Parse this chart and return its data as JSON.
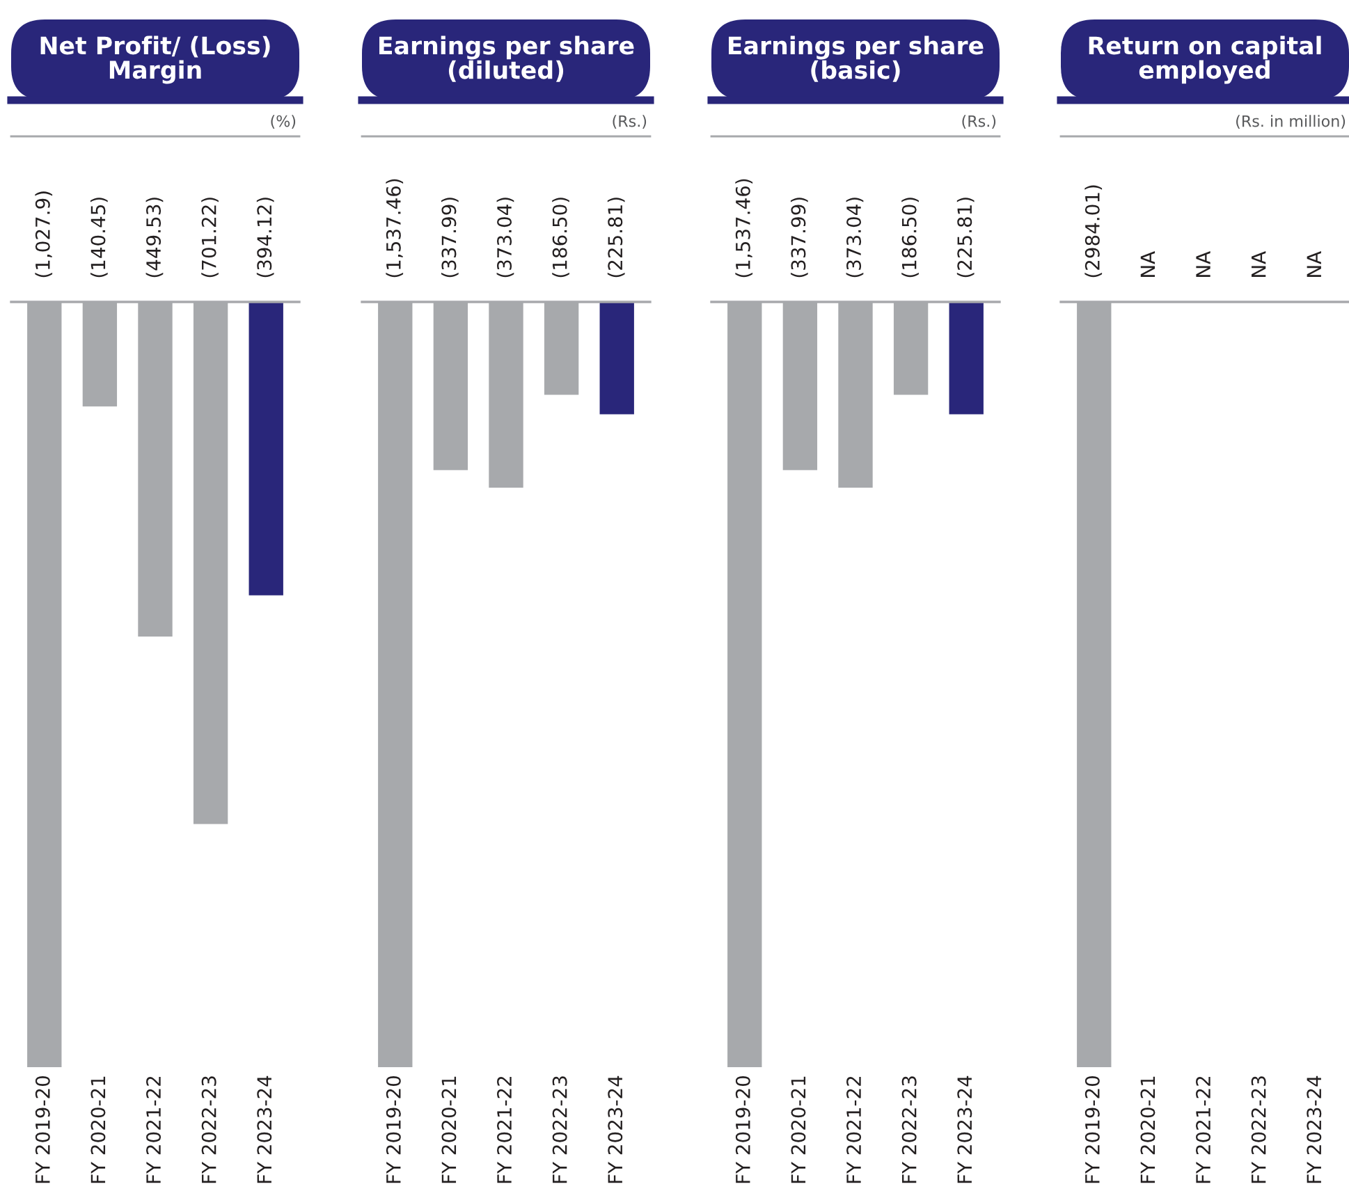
{
  "chart_data": [
    {
      "type": "bar",
      "title": "Net Profit/ (Loss)\nMargin",
      "subtitle": "(%)",
      "categories": [
        "FY 2019-20",
        "FY 2020-21",
        "FY 2021-22",
        "FY 2022-23",
        "FY 2023-24"
      ],
      "values": [
        -1027.9,
        -140.45,
        -449.53,
        -701.22,
        -394.12
      ],
      "colors": [
        "#a7a9ac",
        "#a7a9ac",
        "#a7a9ac",
        "#a7a9ac",
        "#29267a"
      ],
      "value_labels": [
        "(1,027.9)",
        "(140.45)",
        "(449.53)",
        "(701.22)",
        "(394.12)"
      ],
      "ylim": [
        -1027.9,
        0
      ],
      "tick_labels": "x",
      "grid": false,
      "legend": false
    },
    {
      "type": "bar",
      "title": "Earnings per share\n(diluted)",
      "subtitle": "(Rs.)",
      "categories": [
        "FY 2019-20",
        "FY 2020-21",
        "FY 2021-22",
        "FY 2022-23",
        "FY 2023-24"
      ],
      "values": [
        -1537.46,
        -337.99,
        -373.04,
        -186.5,
        -225.81
      ],
      "colors": [
        "#a7a9ac",
        "#a7a9ac",
        "#a7a9ac",
        "#a7a9ac",
        "#29267a"
      ],
      "value_labels": [
        "(1,537.46)",
        "(337.99)",
        "(373.04)",
        "(186.50)",
        "(225.81)"
      ],
      "ylim": [
        -1537.46,
        0
      ],
      "tick_labels": "x",
      "grid": false,
      "legend": false
    },
    {
      "type": "bar",
      "title": "Earnings per share\n(basic)",
      "subtitle": "(Rs.)",
      "categories": [
        "FY 2019-20",
        "FY 2020-21",
        "FY 2021-22",
        "FY 2022-23",
        "FY 2023-24"
      ],
      "values": [
        -1537.46,
        -337.99,
        -373.04,
        -186.5,
        -225.81
      ],
      "colors": [
        "#a7a9ac",
        "#a7a9ac",
        "#a7a9ac",
        "#a7a9ac",
        "#29267a"
      ],
      "value_labels": [
        "(1,537.46)",
        "(337.99)",
        "(373.04)",
        "(186.50)",
        "(225.81)"
      ],
      "ylim": [
        -1537.46,
        0
      ],
      "tick_labels": "x",
      "grid": false,
      "legend": false
    },
    {
      "type": "bar",
      "title": "Return on capital\nemployed",
      "subtitle": "(Rs. in million)",
      "categories": [
        "FY 2019-20",
        "FY 2020-21",
        "FY 2021-22",
        "FY 2022-23",
        "FY 2023-24"
      ],
      "values": [
        -2984.01,
        null,
        null,
        null,
        null
      ],
      "colors": [
        "#a7a9ac",
        "#a7a9ac",
        "#a7a9ac",
        "#a7a9ac",
        "#a7a9ac"
      ],
      "value_labels": [
        "(2984.01)",
        "NA",
        "NA",
        "NA",
        "NA"
      ],
      "ylim": [
        -2984.01,
        0
      ],
      "tick_labels": "x",
      "grid": false,
      "legend": false
    }
  ]
}
